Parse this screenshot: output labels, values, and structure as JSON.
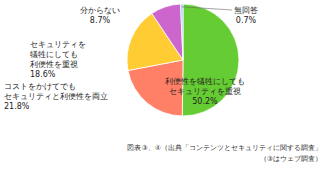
{
  "chart_data": {
    "type": "pie",
    "categories": [
      "利便性を犠牲にしても\nセキュリティを重視",
      "コストをかけてでも\nセキュリティと利便性を両立",
      "セキュリティを\n犠牲にしても\n利便性を重視",
      "分からない",
      "無回答"
    ],
    "values": [
      50.2,
      21.8,
      18.6,
      8.7,
      0.7
    ],
    "value_labels": [
      "50.2%",
      "21.8%",
      "18.6%",
      "8.7%",
      "0.7%"
    ],
    "colors": [
      "#66cc33",
      "#ff8066",
      "#ffcc33",
      "#cc66cc",
      "#99ccff"
    ],
    "data_labels": true,
    "annotations": [
      "図表③、④（出典「コンテンツとセキュリティに関する調査」",
      "（③はウェブ調査）"
    ]
  }
}
